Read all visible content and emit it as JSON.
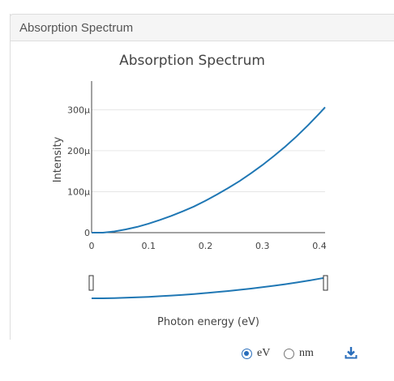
{
  "panel": {
    "title": "Absorption Spectrum"
  },
  "chart_data": {
    "type": "line",
    "title": "Absorption Spectrum",
    "xlabel": "Photon energy (eV)",
    "ylabel": "Intensity",
    "xlim": [
      0,
      0.41
    ],
    "ylim": [
      0,
      0.00037
    ],
    "xticks": [
      0,
      0.1,
      0.2,
      0.3,
      0.4
    ],
    "xtick_labels": [
      "0",
      "0.1",
      "0.2",
      "0.3",
      "0.4"
    ],
    "yticks": [
      0,
      0.0001,
      0.0002,
      0.0003
    ],
    "ytick_labels": [
      "0",
      "100µ",
      "200µ",
      "300µ"
    ],
    "grid": true,
    "series": [
      {
        "color": "#1f77b4",
        "x": [
          0,
          0.02,
          0.04,
          0.06,
          0.08,
          0.1,
          0.12,
          0.14,
          0.16,
          0.18,
          0.2,
          0.22,
          0.24,
          0.26,
          0.28,
          0.3,
          0.32,
          0.34,
          0.36,
          0.38,
          0.4,
          0.41
        ],
        "y": [
          0,
          0,
          3e-06,
          8e-06,
          1.4e-05,
          2.2e-05,
          3.1e-05,
          4.1e-05,
          5.2e-05,
          6.4e-05,
          7.8e-05,
          9.3e-05,
          0.000109,
          0.000126,
          0.000145,
          0.000165,
          0.000187,
          0.00021,
          0.000235,
          0.000262,
          0.000291,
          0.000306
        ]
      }
    ]
  },
  "units": {
    "options": [
      {
        "label": "eV",
        "checked": true
      },
      {
        "label": "nm",
        "checked": false
      }
    ]
  },
  "icons": {
    "download": "download-icon"
  },
  "colors": {
    "line": "#1f77b4",
    "accent": "#2a6ebb"
  }
}
